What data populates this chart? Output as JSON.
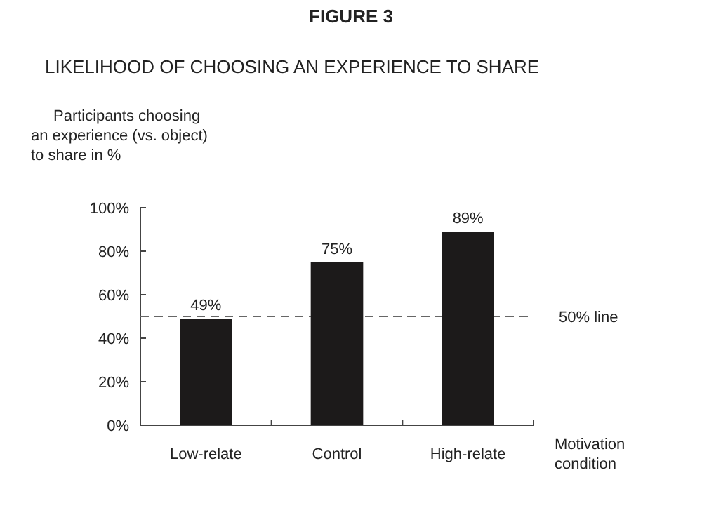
{
  "chart_data": {
    "type": "bar",
    "title": "FIGURE 3",
    "subtitle": "LIKELIHOOD OF CHOOSING AN EXPERIENCE TO SHARE",
    "ylabel": "Participants choosing\nan experience (vs. object)\nto share in %",
    "xlabel": "Motivation\ncondition",
    "categories": [
      "Low-relate",
      "Control",
      "High-relate"
    ],
    "values": [
      49,
      75,
      89
    ],
    "color": "#1c1a1a",
    "value_labels": [
      "49%",
      "75%",
      "89%"
    ],
    "ylim": [
      0,
      100
    ],
    "yticks": [
      {
        "value": 0,
        "label": "0%"
      },
      {
        "value": 20,
        "label": "20%"
      },
      {
        "value": 40,
        "label": "40%"
      },
      {
        "value": 60,
        "label": "60%"
      },
      {
        "value": 80,
        "label": "80%"
      },
      {
        "value": 100,
        "label": "100%"
      }
    ],
    "ref_lines": [
      {
        "axis": "y",
        "value": 50,
        "label": "50% line",
        "color": "#666666",
        "line_style": "dashed"
      }
    ],
    "grid": false
  }
}
